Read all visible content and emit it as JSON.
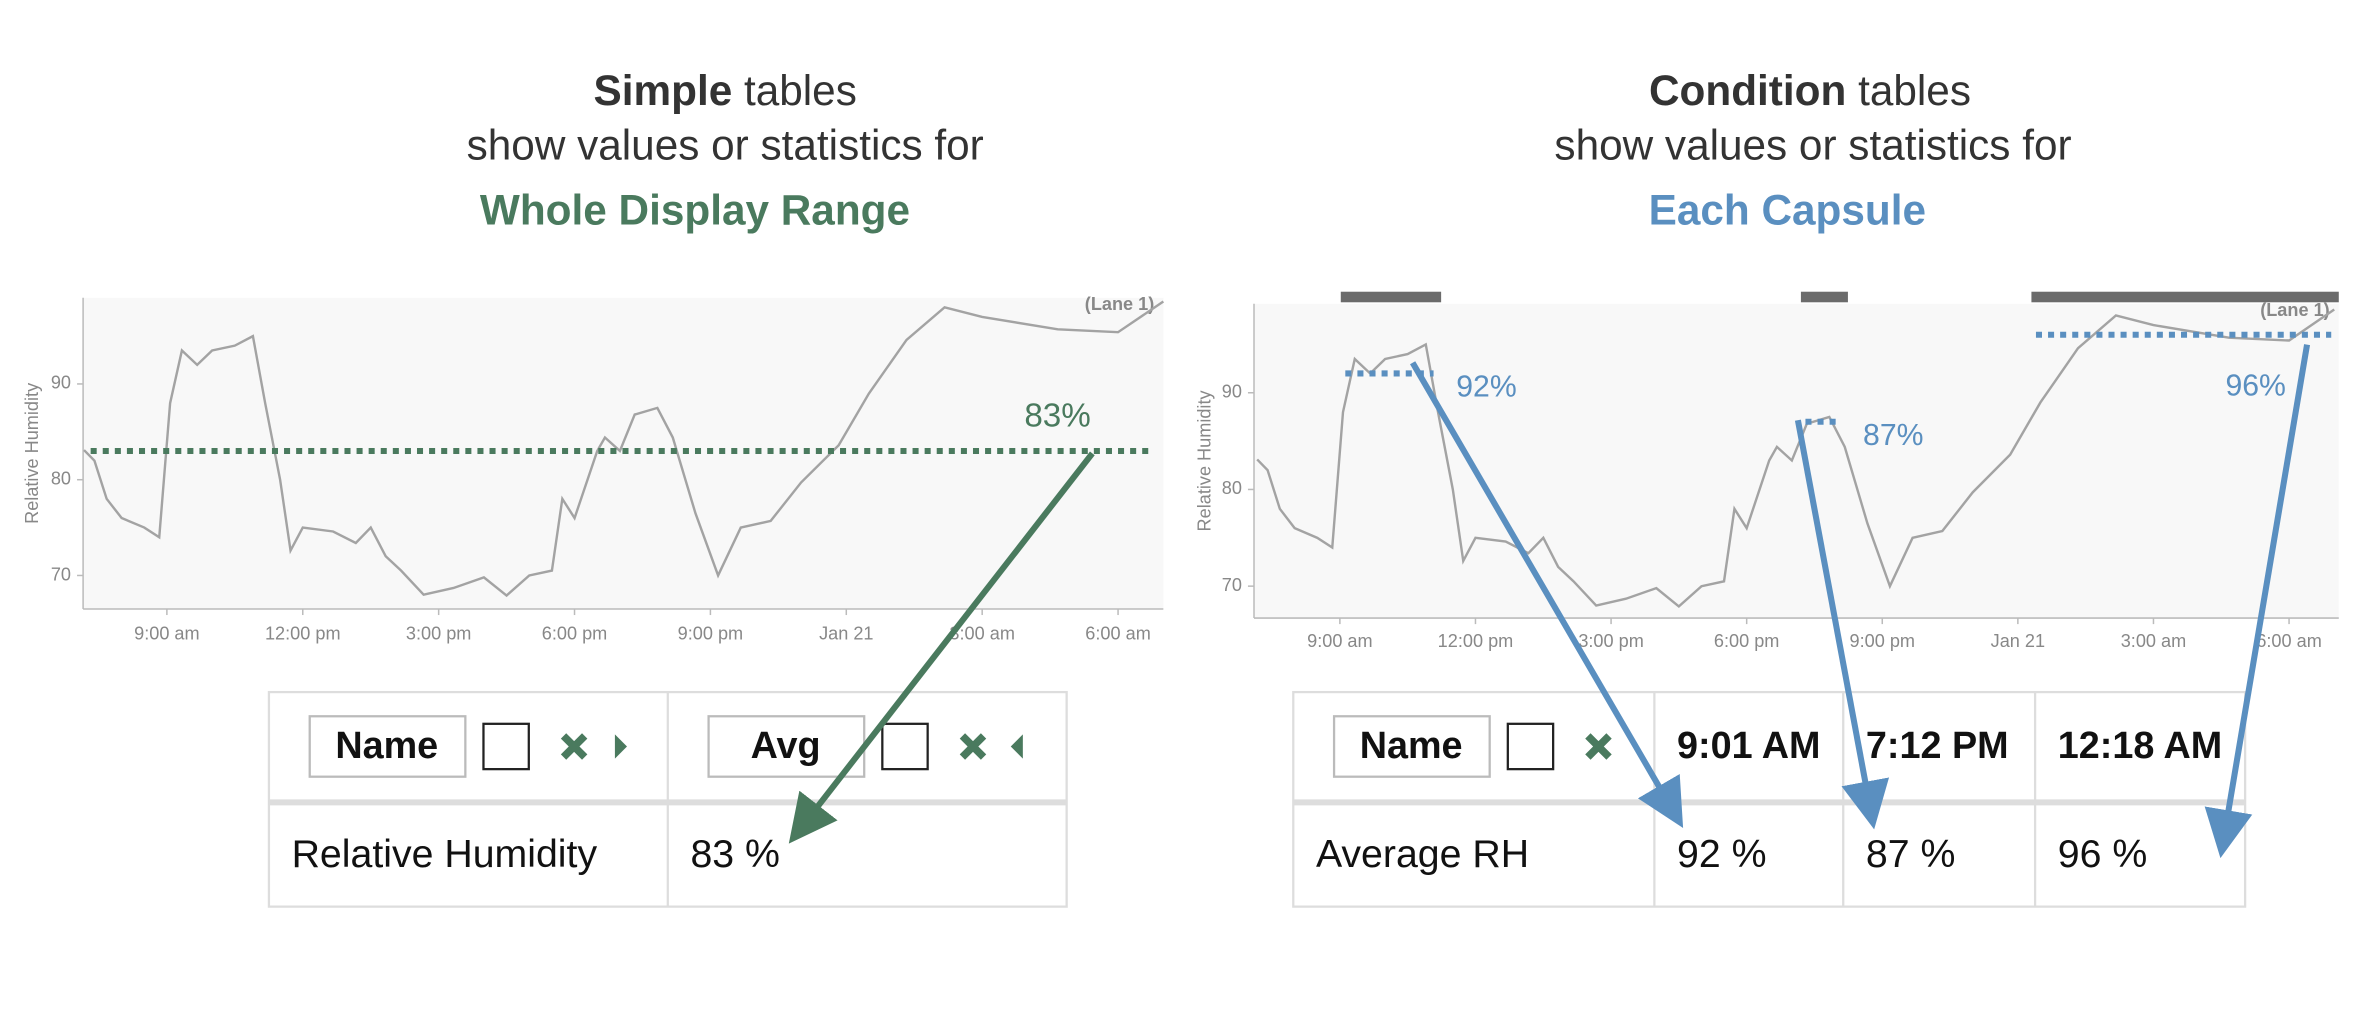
{
  "panels": [
    {
      "heading": {
        "bold": "Simple",
        "rest": "tables",
        "line2": "show values or statistics for",
        "scope": "Whole Display Range"
      },
      "chart": {
        "y_label": "Relative Humidity",
        "lane_label": "(Lane 1)",
        "xlim": [
          7.15,
          31
        ],
        "ylim": [
          66.5,
          99
        ],
        "yticks": [
          70,
          80,
          90
        ],
        "xticks": [
          {
            "value": 9,
            "label": "9:00 am"
          },
          {
            "value": 12,
            "label": "12:00 pm"
          },
          {
            "value": 15,
            "label": "3:00 pm"
          },
          {
            "value": 18,
            "label": "6:00 pm"
          },
          {
            "value": 21,
            "label": "9:00 pm"
          },
          {
            "value": 24,
            "label": "Jan 21"
          },
          {
            "value": 27,
            "label": "3:00 am"
          },
          {
            "value": 30,
            "label": "6:00 am"
          }
        ],
        "trace": {
          "x": [
            7.17,
            7.4,
            7.67,
            8,
            8.5,
            8.83,
            9.07,
            9.33,
            9.67,
            10,
            10.5,
            10.9,
            11.17,
            11.5,
            11.73,
            12,
            12.67,
            13.17,
            13.5,
            13.83,
            14.17,
            14.67,
            15.33,
            16,
            16.5,
            17,
            17.5,
            17.73,
            18,
            18.5,
            18.67,
            19,
            19.33,
            19.83,
            20.17,
            20.67,
            21.17,
            21.67,
            22.33,
            23,
            23.83,
            24.5,
            25.33,
            26.17,
            27,
            28.67,
            30,
            31
          ],
          "values": [
            83.1,
            82,
            78,
            76,
            75,
            74,
            88,
            93.5,
            92,
            93.5,
            94,
            95,
            88,
            80,
            72.6,
            75,
            74.6,
            73.4,
            75,
            72,
            70.5,
            68,
            68.7,
            69.8,
            67.9,
            70,
            70.5,
            78,
            76,
            83,
            84.4,
            83,
            86.8,
            87.5,
            84.4,
            76.5,
            70,
            75,
            75.7,
            79.7,
            83.6,
            89,
            94.6,
            98,
            97,
            95.7,
            95.4,
            98.6
          ]
        },
        "reference_line": {
          "value": 83,
          "label": "83%"
        }
      },
      "table": {
        "header": [
          "Name",
          "Avg"
        ],
        "rows": [
          [
            "Relative Humidity",
            "83 %"
          ]
        ]
      }
    },
    {
      "heading": {
        "bold": "Condition",
        "rest": "tables",
        "line2": "show values or statistics for",
        "scope": "Each Capsule"
      },
      "chart": {
        "y_label": "Relative Humidity",
        "lane_label": "(Lane 1)",
        "xlim": [
          7.1,
          31.1
        ],
        "ylim": [
          66.7,
          99.2
        ],
        "yticks": [
          70,
          80,
          90
        ],
        "xticks": [
          {
            "value": 9,
            "label": "9:00 am"
          },
          {
            "value": 12,
            "label": "12:00 pm"
          },
          {
            "value": 15,
            "label": "3:00 pm"
          },
          {
            "value": 18,
            "label": "6:00 pm"
          },
          {
            "value": 21,
            "label": "9:00 pm"
          },
          {
            "value": 24,
            "label": "Jan 21"
          },
          {
            "value": 27,
            "label": "3:00 am"
          },
          {
            "value": 30,
            "label": "6:00 am"
          }
        ],
        "trace": {
          "x": [
            7.17,
            7.4,
            7.67,
            8,
            8.5,
            8.83,
            9.07,
            9.33,
            9.67,
            10,
            10.5,
            10.9,
            11.17,
            11.5,
            11.73,
            12,
            12.67,
            13.17,
            13.5,
            13.83,
            14.17,
            14.67,
            15.33,
            16,
            16.5,
            17,
            17.5,
            17.73,
            18,
            18.5,
            18.67,
            19,
            19.33,
            19.83,
            20.17,
            20.67,
            21.17,
            21.67,
            22.33,
            23,
            23.83,
            24.5,
            25.33,
            26.17,
            27,
            28.67,
            30,
            31
          ],
          "values": [
            83.1,
            82,
            78,
            76,
            75,
            74,
            88,
            93.5,
            92,
            93.5,
            94,
            95,
            88,
            80,
            72.6,
            75,
            74.6,
            73.4,
            75,
            72,
            70.5,
            68,
            68.7,
            69.8,
            67.9,
            70,
            70.5,
            78,
            76,
            83,
            84.4,
            83,
            86.8,
            87.5,
            84.4,
            76.5,
            70,
            75,
            75.7,
            79.7,
            83.6,
            89,
            94.6,
            98,
            97,
            95.7,
            95.4,
            98.6
          ]
        },
        "capsules": [
          {
            "start": 9.02,
            "end": 11.24,
            "value": 92,
            "label": "92%"
          },
          {
            "start": 19.2,
            "end": 20.24,
            "value": 87,
            "label": "87%"
          },
          {
            "start": 24.3,
            "end": 32,
            "value": 96,
            "label": "96%"
          }
        ]
      },
      "table": {
        "header": [
          "Name",
          "9:01 AM",
          "7:12 PM",
          "12:18 AM"
        ],
        "rows": [
          [
            "Average RH",
            "92 %",
            "87 %",
            "96 %"
          ]
        ]
      }
    }
  ]
}
